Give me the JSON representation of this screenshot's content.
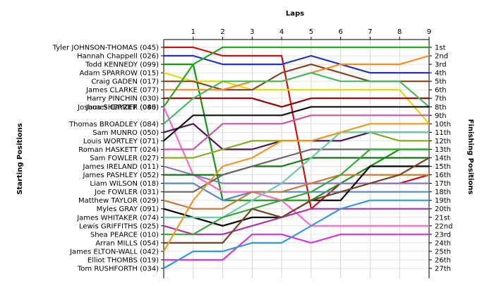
{
  "chart_data": {
    "type": "line",
    "title": "",
    "xlabel": "Laps",
    "ylabel_left": "Starting Positions",
    "ylabel_right": "Finishing Positions",
    "x": [
      0,
      1,
      2,
      3,
      4,
      5,
      6,
      7,
      8,
      9
    ],
    "x_tick_labels": [
      "1",
      "2",
      "3",
      "4",
      "5",
      "6",
      "7",
      "8",
      "9"
    ],
    "y_range": [
      1,
      27
    ],
    "y_inverted": true,
    "grid": true,
    "right_tick_labels": [
      "1st",
      "2nd",
      "3rd",
      "4th",
      "5th",
      "6th",
      "7th",
      "8th",
      "9th",
      "10th",
      "11th",
      "12th",
      "13th",
      "14th",
      "15th",
      "16th",
      "17th",
      "18th",
      "19th",
      "20th",
      "21st",
      "22nd",
      "23rd",
      "24th",
      "25th",
      "26th",
      "27th"
    ],
    "series": [
      {
        "name": "Tyler JOHNSON-THOMAS (045)",
        "color": "#cc1111",
        "values": [
          1,
          1,
          2,
          2,
          2,
          20,
          17,
          17,
          17,
          16
        ]
      },
      {
        "name": "Hannah Chappell (026)",
        "color": "#2233cc",
        "values": [
          2,
          2,
          3,
          3,
          3,
          2,
          3,
          4,
          4,
          4
        ]
      },
      {
        "name": "Todd KENNEDY (099)",
        "color": "#119911",
        "values": [
          3,
          3,
          19,
          19,
          19,
          19,
          17,
          15,
          13,
          13
        ]
      },
      {
        "name": "Adam SPARROW (015)",
        "color": "#dddd00",
        "values": [
          4,
          5,
          5,
          6,
          6,
          6,
          6,
          6,
          6,
          10
        ]
      },
      {
        "name": "Craig GADEN (017)",
        "color": "#884422",
        "values": [
          5,
          5,
          6,
          6,
          4,
          3,
          4,
          5,
          5,
          5
        ]
      },
      {
        "name": "James CLARKE (077)",
        "color": "#ff8822",
        "values": [
          6,
          6,
          6,
          5,
          5,
          4,
          3,
          3,
          3,
          2
        ]
      },
      {
        "name": "Harry PINCHIN (030)",
        "color": "#990000",
        "values": [
          7,
          7,
          7,
          7,
          8,
          7,
          7,
          7,
          7,
          7
        ]
      },
      {
        "name": "Joshua SHERRIFF (040)",
        "color": "#22aa22",
        "values": [
          8,
          3,
          1,
          1,
          1,
          1,
          1,
          1,
          1,
          1
        ]
      },
      {
        "name": "James CAYZER (088)",
        "color": "#ff66cc",
        "values": [
          8,
          16,
          18,
          18,
          19,
          22,
          22,
          22,
          22,
          22
        ]
      },
      {
        "name": "Thomas BROADLEY (084)",
        "color": "#44bb66",
        "values": [
          10,
          7,
          5,
          5,
          5,
          4,
          5,
          5,
          5,
          8
        ]
      },
      {
        "name": "Sam MUNRO (050)",
        "color": "#551155",
        "values": [
          11,
          10,
          13,
          13,
          12,
          12,
          12,
          11,
          11,
          11
        ]
      },
      {
        "name": "Louis WORTLEY (071)",
        "color": "#111111",
        "values": [
          12,
          9,
          9,
          9,
          9,
          8,
          8,
          8,
          8,
          8
        ]
      },
      {
        "name": "Roman HASKETT (024)",
        "color": "#cc55aa",
        "values": [
          13,
          13,
          10,
          10,
          10,
          9,
          9,
          9,
          9,
          9
        ]
      },
      {
        "name": "Sam FOWLER (027)",
        "color": "#88aa22",
        "values": [
          14,
          14,
          13,
          12,
          12,
          12,
          11,
          11,
          12,
          12
        ]
      },
      {
        "name": "James IRELAND (011)",
        "color": "#8877cc",
        "values": [
          15,
          16,
          17,
          17,
          17,
          17,
          17,
          17,
          17,
          17
        ]
      },
      {
        "name": "James PASHLEY (052)",
        "color": "#117711",
        "values": [
          16,
          16,
          16,
          15,
          15,
          14,
          14,
          14,
          14,
          14
        ]
      },
      {
        "name": "Liam WILSON (018)",
        "color": "#5588cc",
        "values": [
          17,
          17,
          19,
          18,
          18,
          18,
          18,
          18,
          18,
          18
        ]
      },
      {
        "name": "Joe FOWLER (031)",
        "color": "#666666",
        "values": [
          18,
          18,
          16,
          15,
          14,
          13,
          13,
          13,
          13,
          13
        ]
      },
      {
        "name": "Matthew TAYLOR (029)",
        "color": "#cc7733",
        "values": [
          19,
          20,
          20,
          18,
          18,
          17,
          16,
          16,
          16,
          16
        ]
      },
      {
        "name": "Myles GRAY (091)",
        "color": "#000000",
        "values": [
          20,
          21,
          22,
          21,
          21,
          19,
          19,
          15,
          15,
          15
        ]
      },
      {
        "name": "James WHITAKER (074)",
        "color": "#66ccaa",
        "values": [
          21,
          21,
          21,
          19,
          17,
          14,
          11,
          11,
          11,
          11
        ]
      },
      {
        "name": "Lewis GRIFFITHS (025)",
        "color": "#aa33aa",
        "values": [
          22,
          23,
          23,
          22,
          21,
          20,
          20,
          20,
          20,
          20
        ]
      },
      {
        "name": "Shea PEARCE (010)",
        "color": "#33aa33",
        "values": [
          23,
          23,
          21,
          20,
          19,
          18,
          16,
          13,
          13,
          13
        ]
      },
      {
        "name": "Arran MILLS (054)",
        "color": "#774422",
        "values": [
          24,
          24,
          24,
          20,
          21,
          19,
          18,
          17,
          16,
          14
        ]
      },
      {
        "name": "James ELTON-WALL (042)",
        "color": "#ee9922",
        "values": [
          25,
          19,
          15,
          14,
          12,
          12,
          11,
          10,
          10,
          10
        ]
      },
      {
        "name": "Elliot THOMBS (019)",
        "color": "#dd33dd",
        "values": [
          26,
          26,
          26,
          23,
          23,
          24,
          23,
          23,
          23,
          23
        ]
      },
      {
        "name": "Tom RUSHFORTH (034)",
        "color": "#3399dd",
        "values": [
          27,
          25,
          25,
          24,
          24,
          22,
          20,
          19,
          19,
          19
        ]
      }
    ]
  }
}
